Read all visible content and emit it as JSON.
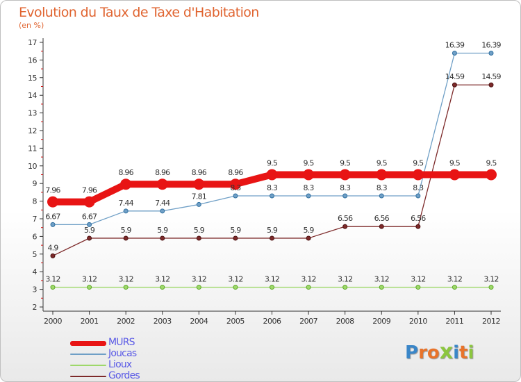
{
  "header": {
    "title": "Evolution du Taux de Taxe d'Habitation",
    "unit": "(en %)"
  },
  "logo": {
    "letters": [
      "P",
      "r",
      "o",
      "x",
      "i",
      "t",
      "i"
    ],
    "colors": [
      "#3a86c8",
      "#e8732a",
      "#e8732a",
      "#8cc63f",
      "#3a86c8",
      "#e8732a",
      "#8cc63f"
    ]
  },
  "chart_data": {
    "type": "line",
    "title": "Evolution du Taux de Taxe d'Habitation",
    "ylabel": "(en %)",
    "xlabel": "",
    "x": [
      "2000",
      "2001",
      "2002",
      "2003",
      "2004",
      "2005",
      "2006",
      "2007",
      "2008",
      "2009",
      "2010",
      "2011",
      "2012"
    ],
    "ylim": [
      2,
      17
    ],
    "yticks": [
      2,
      3,
      4,
      5,
      6,
      7,
      8,
      9,
      10,
      11,
      12,
      13,
      14,
      15,
      16,
      17
    ],
    "grid": false,
    "legend_placement": "bottom-left",
    "series": [
      {
        "name": "MURS",
        "color": "#e81414",
        "values": [
          7.96,
          7.96,
          8.96,
          8.96,
          8.96,
          8.96,
          9.5,
          9.5,
          9.5,
          9.5,
          9.5,
          9.5,
          9.5
        ],
        "labels": [
          "7.96",
          "7.96",
          "8.96",
          "8.96",
          "8.96",
          "8.96",
          "9.5",
          "9.5",
          "9.5",
          "9.5",
          "9.5",
          "9.5",
          "9.5"
        ]
      },
      {
        "name": "Joucas",
        "color": "#6f9fc6",
        "values": [
          6.67,
          6.67,
          7.44,
          7.44,
          7.81,
          8.3,
          8.3,
          8.3,
          8.3,
          8.3,
          8.3,
          16.39,
          16.39
        ],
        "labels": [
          "6.67",
          "6.67",
          "7.44",
          "7.44",
          "7.81",
          "8.3",
          "8.3",
          "8.3",
          "8.3",
          "8.3",
          "8.3",
          "16.39",
          "16.39"
        ]
      },
      {
        "name": "Lioux",
        "color": "#9ed86a",
        "values": [
          3.12,
          3.12,
          3.12,
          3.12,
          3.12,
          3.12,
          3.12,
          3.12,
          3.12,
          3.12,
          3.12,
          3.12,
          3.12
        ],
        "labels": [
          "3.12",
          "3.12",
          "3.12",
          "3.12",
          "3.12",
          "3.12",
          "3.12",
          "3.12",
          "3.12",
          "3.12",
          "3.12",
          "3.12",
          "3.12"
        ]
      },
      {
        "name": "Gordes",
        "color": "#7d2a2a",
        "values": [
          4.9,
          5.9,
          5.9,
          5.9,
          5.9,
          5.9,
          5.9,
          5.9,
          6.56,
          6.56,
          6.56,
          14.59,
          14.59
        ],
        "labels": [
          "4.9",
          "5.9",
          "5.9",
          "5.9",
          "5.9",
          "5.9",
          "5.9",
          "5.9",
          "6.56",
          "6.56",
          "6.56",
          "14.59",
          "14.59"
        ]
      }
    ]
  }
}
